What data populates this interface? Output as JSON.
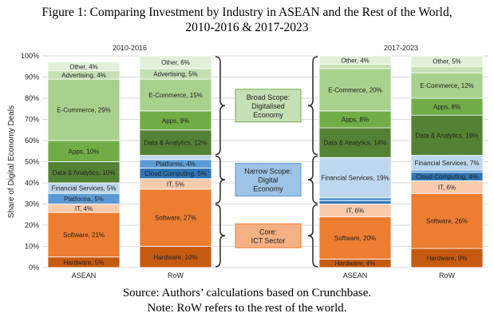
{
  "title_line1": "Figure 1: Comparing Investment by Industry in ASEAN and the Rest of the World,",
  "title_line2": "2010-2016 & 2017-2023",
  "footer_line1": "Source: Authors’ calculations based on Crunchbase.",
  "footer_line2": "Note: RoW refers to the rest of the world.",
  "chart_data": {
    "type": "stacked-bar",
    "ylabel": "Share of Digital Economy Deals",
    "ylim": [
      0,
      100
    ],
    "yticks": [
      "0%",
      "10%",
      "20%",
      "30%",
      "40%",
      "50%",
      "60%",
      "70%",
      "80%",
      "90%",
      "100%"
    ],
    "periods": [
      "2010-2016",
      "2017-2023"
    ],
    "categories": [
      "ASEAN",
      "RoW",
      "ASEAN",
      "RoW"
    ],
    "bars": [
      {
        "period": "2010-2016",
        "category": "ASEAN",
        "segments": [
          {
            "name": "Hardware",
            "value": 5,
            "label": "Hardware, 5%"
          },
          {
            "name": "Software",
            "value": 21,
            "label": "Software, 21%"
          },
          {
            "name": "IT",
            "value": 4,
            "label": "IT, 4%"
          },
          {
            "name": "Platforms",
            "value": 5,
            "label": "Platforms, 5%"
          },
          {
            "name": "Financial Services",
            "value": 5,
            "label": "Financial Services, 5%"
          },
          {
            "name": "Data & Analytics",
            "value": 10,
            "label": "Data & Analytics, 10%"
          },
          {
            "name": "Apps",
            "value": 10,
            "label": "Apps, 10%"
          },
          {
            "name": "E-Commerce",
            "value": 29,
            "label": "E-Commerce, 29%"
          },
          {
            "name": "Advertising",
            "value": 4,
            "label": "Advertising, 4%"
          },
          {
            "name": "Other",
            "value": 4,
            "label": "Other, 4%"
          }
        ]
      },
      {
        "period": "2010-2016",
        "category": "RoW",
        "segments": [
          {
            "name": "Hardware",
            "value": 10,
            "label": "Hardware, 10%"
          },
          {
            "name": "Software",
            "value": 27,
            "label": "Software, 27%"
          },
          {
            "name": "IT",
            "value": 5,
            "label": "IT, 5%"
          },
          {
            "name": "Cloud Computing",
            "value": 5,
            "label": "Cloud Computing, 5%"
          },
          {
            "name": "Platforms",
            "value": 4,
            "label": "Platforms, 4%"
          },
          {
            "name": "Financial Services",
            "value": 2,
            "label": ""
          },
          {
            "name": "Data & Analytics",
            "value": 12,
            "label": "Data & Analytics, 12%"
          },
          {
            "name": "Apps",
            "value": 9,
            "label": "Apps, 9%"
          },
          {
            "name": "E-Commerce",
            "value": 15,
            "label": "E-Commerce, 15%"
          },
          {
            "name": "Advertising",
            "value": 5,
            "label": "Advertising, 5%"
          },
          {
            "name": "Other",
            "value": 6,
            "label": "Other, 6%"
          }
        ]
      },
      {
        "period": "2017-2023",
        "category": "ASEAN",
        "segments": [
          {
            "name": "Hardware",
            "value": 4,
            "label": "Hardware, 4%"
          },
          {
            "name": "Software",
            "value": 20,
            "label": "Software, 20%"
          },
          {
            "name": "IT",
            "value": 6,
            "label": "IT, 6%"
          },
          {
            "name": "Cloud Computing",
            "value": 1.5,
            "label": ""
          },
          {
            "name": "Platforms",
            "value": 1.5,
            "label": ""
          },
          {
            "name": "Financial Services",
            "value": 19,
            "label": "Financial Services, 19%"
          },
          {
            "name": "Data & Analytics",
            "value": 14,
            "label": "Data & Analytics, 14%"
          },
          {
            "name": "Apps",
            "value": 8,
            "label": "Apps, 8%"
          },
          {
            "name": "E-Commerce",
            "value": 20,
            "label": "E-Commerce, 20%"
          },
          {
            "name": "Advertising",
            "value": 2,
            "label": ""
          },
          {
            "name": "Other",
            "value": 4,
            "label": "Other, 4%"
          }
        ]
      },
      {
        "period": "2017-2023",
        "category": "RoW",
        "segments": [
          {
            "name": "Hardware",
            "value": 9,
            "label": "Hardware, 9%"
          },
          {
            "name": "Software",
            "value": 26,
            "label": "Software, 26%"
          },
          {
            "name": "IT",
            "value": 6,
            "label": "IT, 6%"
          },
          {
            "name": "Cloud Computing",
            "value": 4,
            "label": "Cloud Computing, 4%"
          },
          {
            "name": "Platforms",
            "value": 1,
            "label": ""
          },
          {
            "name": "Financial Services",
            "value": 7,
            "label": "Financial Services, 7%"
          },
          {
            "name": "Data & Analytics",
            "value": 19,
            "label": "Data & Analytics, 19%"
          },
          {
            "name": "Apps",
            "value": 8,
            "label": "Apps, 8%"
          },
          {
            "name": "E-Commerce",
            "value": 12,
            "label": "E-Commerce, 12%"
          },
          {
            "name": "Advertising",
            "value": 3,
            "label": ""
          },
          {
            "name": "Other",
            "value": 5,
            "label": "Other, 5%"
          }
        ]
      }
    ],
    "colors": {
      "Hardware": "#c55a11",
      "Software": "#ed7d31",
      "IT": "#f8cbad",
      "Cloud Computing": "#2e75b6",
      "Platforms": "#5b9bd5",
      "Financial Services": "#bdd7ee",
      "Data & Analytics": "#548235",
      "Apps": "#70ad47",
      "E-Commerce": "#a9d18e",
      "Advertising": "#c5e0b4",
      "Other": "#e2f0d9"
    },
    "scopes": [
      {
        "text": [
          "Broad Scope:",
          "Digitalised",
          "Economy"
        ],
        "from": 53,
        "to": 100,
        "fill": "#c5e0b4",
        "stroke": "#70ad47"
      },
      {
        "text": [
          "Narrow Scope:",
          "Digital",
          "Economy"
        ],
        "from": 30,
        "to": 53,
        "fill": "#9dc3e6",
        "stroke": "#5b9bd5"
      },
      {
        "text": [
          "Core:",
          "ICT Sector"
        ],
        "from": 0,
        "to": 30,
        "fill": "#f4b183",
        "stroke": "#ed7d31"
      }
    ]
  }
}
